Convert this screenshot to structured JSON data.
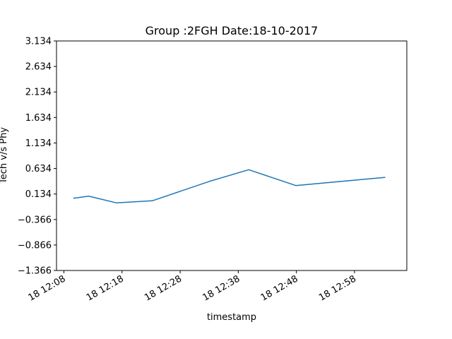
{
  "chart_data": {
    "type": "line",
    "title": "Group :2FGH Date:18-10-2017",
    "xlabel": "timestamp",
    "ylabel": "Tech v/s Phy",
    "x_ticks": [
      {
        "time": "2017-10-18 12:08",
        "label": "18 12:08"
      },
      {
        "time": "2017-10-18 12:18",
        "label": "18 12:18"
      },
      {
        "time": "2017-10-18 12:28",
        "label": "18 12:28"
      },
      {
        "time": "2017-10-18 12:38",
        "label": "18 12:38"
      },
      {
        "time": "2017-10-18 12:48",
        "label": "18 12:48"
      },
      {
        "time": "2017-10-18 12:58",
        "label": "18 12:58"
      }
    ],
    "y_ticks": [
      -1.366,
      -0.866,
      -0.366,
      0.134,
      0.634,
      1.134,
      1.634,
      2.134,
      2.634,
      3.134
    ],
    "y_tick_labels": [
      "−1.366",
      "−0.866",
      "−0.366",
      "0.134",
      "0.634",
      "1.134",
      "1.634",
      "2.134",
      "2.634",
      "3.134"
    ],
    "xlim": [
      "2017-10-18 12:08",
      "2017-10-18 13:07"
    ],
    "ylim": [
      -1.366,
      3.134
    ],
    "grid": false,
    "series": [
      {
        "color": "#1f77b4",
        "points": [
          {
            "x": "2017-10-18 12:09:36",
            "y": 0.05
          },
          {
            "x": "2017-10-18 12:12:18",
            "y": 0.09
          },
          {
            "x": "2017-10-18 12:17:00",
            "y": -0.04
          },
          {
            "x": "2017-10-18 12:23:12",
            "y": 0.0
          },
          {
            "x": "2017-10-18 12:33:00",
            "y": 0.38
          },
          {
            "x": "2017-10-18 12:39:48",
            "y": 0.61
          },
          {
            "x": "2017-10-18 12:47:54",
            "y": 0.3
          },
          {
            "x": "2017-10-18 13:03:18",
            "y": 0.46
          }
        ]
      }
    ]
  }
}
